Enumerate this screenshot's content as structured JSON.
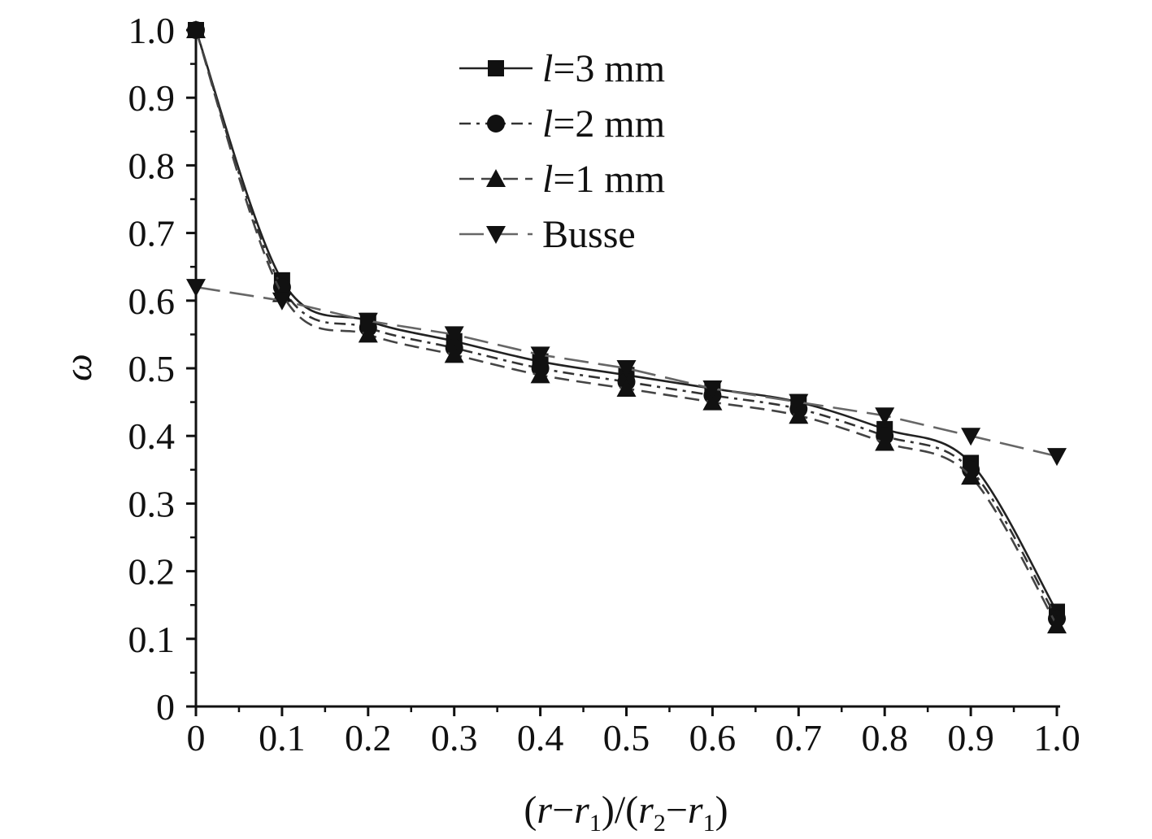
{
  "chart_data": {
    "type": "line",
    "x": [
      0,
      0.1,
      0.2,
      0.3,
      0.4,
      0.5,
      0.6,
      0.7,
      0.8,
      0.9,
      1.0
    ],
    "xlim": [
      0,
      1.0
    ],
    "ylim": [
      0,
      1.0
    ],
    "x_ticks": [
      "0",
      "0.1",
      "0.2",
      "0.3",
      "0.4",
      "0.5",
      "0.6",
      "0.7",
      "0.8",
      "0.9",
      "1.0"
    ],
    "y_ticks": [
      "0",
      "0.1",
      "0.2",
      "0.3",
      "0.4",
      "0.5",
      "0.6",
      "0.7",
      "0.8",
      "0.9",
      "1.0"
    ],
    "xlabel": "(r−r1)/(r2−r1)",
    "xlabel_parts": {
      "open": "(",
      "r_a": "r",
      "minus_a": "−",
      "r1_a": "r",
      "sub1_a": "1",
      "mid": ")/(",
      "r2": "r",
      "sub2": "2",
      "minus_b": "−",
      "r1_b": "r",
      "sub1_b": "1",
      "close": ")"
    },
    "ylabel": "ω",
    "grid": false,
    "legend_position": "top-center",
    "series": [
      {
        "name": "l=3 mm",
        "name_italic": "l",
        "name_rest": "=3 mm",
        "marker": "square",
        "dash": "solid",
        "color": "#222222",
        "values": [
          1.0,
          0.63,
          0.57,
          0.54,
          0.51,
          0.49,
          0.47,
          0.45,
          0.41,
          0.36,
          0.14
        ]
      },
      {
        "name": "l=2 mm",
        "name_italic": "l",
        "name_rest": "=2 mm",
        "marker": "circle",
        "dash": "dashdot",
        "color": "#333333",
        "values": [
          1.0,
          0.62,
          0.56,
          0.53,
          0.5,
          0.48,
          0.46,
          0.44,
          0.4,
          0.35,
          0.13
        ]
      },
      {
        "name": "l=1 mm",
        "name_italic": "l",
        "name_rest": "=1 mm",
        "marker": "triangle-up",
        "dash": "dash",
        "color": "#444444",
        "values": [
          1.0,
          0.61,
          0.55,
          0.52,
          0.49,
          0.47,
          0.45,
          0.43,
          0.39,
          0.34,
          0.12
        ]
      },
      {
        "name": "Busse",
        "name_italic": "",
        "name_rest": "Busse",
        "marker": "triangle-down",
        "dash": "longdash",
        "color": "#666666",
        "values": [
          0.62,
          0.6,
          0.57,
          0.55,
          0.52,
          0.5,
          0.47,
          0.45,
          0.43,
          0.4,
          0.37
        ]
      }
    ]
  }
}
